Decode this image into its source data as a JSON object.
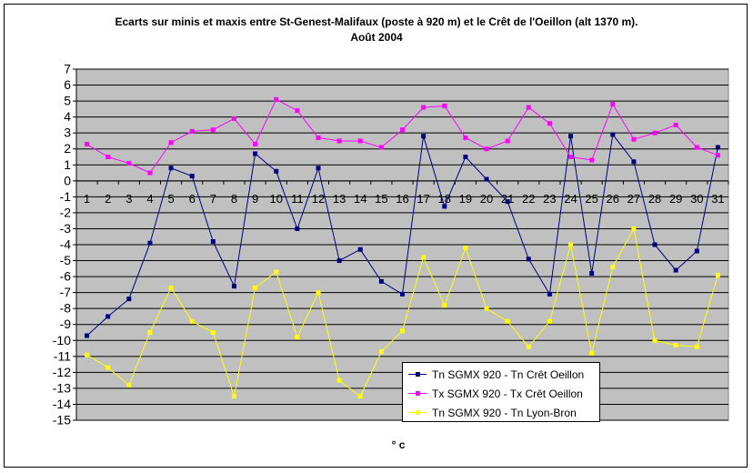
{
  "chart_data": {
    "type": "line",
    "title_line1": "Ecarts sur minis et maxis entre St-Genest-Malifaux (poste à 920 m) et le Crêt de l'Oeillon (alt 1370 m).",
    "title_line2": "Août 2004",
    "xlabel": "° c",
    "ylabel": "",
    "ylim": [
      -15,
      7
    ],
    "yticks": [
      7,
      6,
      5,
      4,
      3,
      2,
      1,
      0,
      -1,
      -2,
      -3,
      -4,
      -5,
      -6,
      -7,
      -8,
      -9,
      -10,
      -11,
      -12,
      -13,
      -14,
      -15
    ],
    "categories": [
      1,
      2,
      3,
      4,
      5,
      6,
      7,
      8,
      9,
      10,
      11,
      12,
      13,
      14,
      15,
      16,
      17,
      18,
      19,
      20,
      21,
      22,
      23,
      24,
      25,
      26,
      27,
      28,
      29,
      30,
      31
    ],
    "grid": true,
    "legend_position": "bottom-right inside plot",
    "plot_background": "#c0c0c0",
    "series": [
      {
        "name": "Tn SGMX 920 - Tn Crêt Oeillon",
        "color": "#000080",
        "values": [
          -9.7,
          -8.5,
          -7.4,
          -3.9,
          0.8,
          0.3,
          -3.8,
          -6.6,
          1.7,
          0.6,
          -3.0,
          0.8,
          -5.0,
          -4.3,
          -6.3,
          -7.1,
          2.8,
          -1.6,
          1.5,
          0.1,
          -1.3,
          -4.9,
          -7.1,
          2.8,
          -5.8,
          2.9,
          1.2,
          -4.0,
          -5.6,
          -4.4,
          2.1
        ]
      },
      {
        "name": "Tx SGMX 920 - Tx Crêt Oeillon",
        "color": "#ff00ff",
        "values": [
          2.3,
          1.5,
          1.1,
          0.5,
          2.4,
          3.1,
          3.2,
          3.9,
          2.3,
          5.1,
          4.4,
          2.7,
          2.5,
          2.5,
          2.1,
          3.2,
          4.6,
          4.7,
          2.7,
          2.0,
          2.5,
          4.6,
          3.6,
          1.5,
          1.3,
          4.8,
          2.6,
          3.0,
          3.5,
          2.1,
          1.6
        ]
      },
      {
        "name": "Tn SGMX 920 - Tn Lyon-Bron",
        "color": "#ffff00",
        "values": [
          -10.9,
          -11.7,
          -12.8,
          -9.5,
          -6.7,
          -8.8,
          -9.5,
          -13.5,
          -6.7,
          -5.7,
          -9.8,
          -7.0,
          -12.5,
          -13.5,
          -10.7,
          -9.4,
          -4.8,
          -7.8,
          -4.2,
          -8.0,
          -8.8,
          -10.4,
          -8.8,
          -4.0,
          -10.8,
          -5.4,
          -3.0,
          -10.0,
          -10.3,
          -10.4,
          -5.9
        ]
      }
    ]
  }
}
